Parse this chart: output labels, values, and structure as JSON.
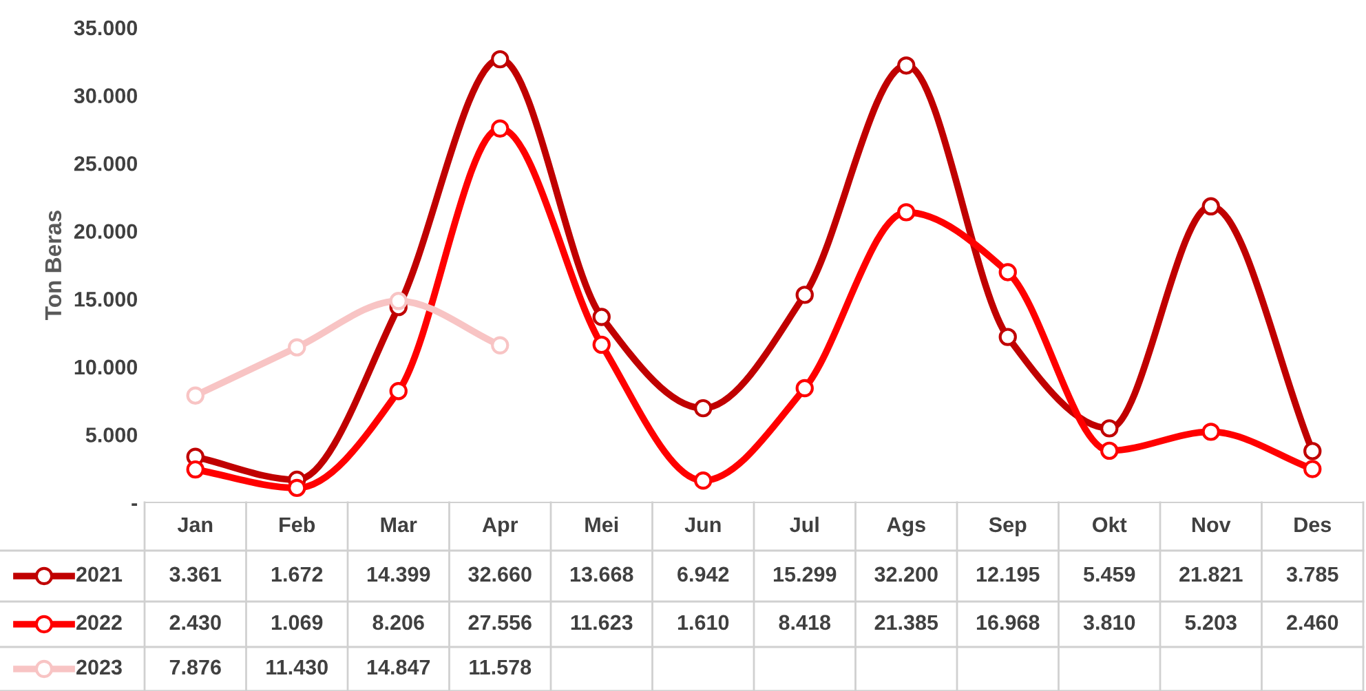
{
  "chart_data": {
    "type": "line",
    "ylabel": "Ton Beras",
    "categories": [
      "Jan",
      "Feb",
      "Mar",
      "Apr",
      "Mei",
      "Jun",
      "Jul",
      "Ags",
      "Sep",
      "Okt",
      "Nov",
      "Des"
    ],
    "series": [
      {
        "name": "2021",
        "color": "#c00000",
        "values": [
          3361,
          1672,
          14399,
          32660,
          13668,
          6942,
          15299,
          32200,
          12195,
          5459,
          21821,
          3785
        ],
        "value_labels": [
          "3.361",
          "1.672",
          "14.399",
          "32.660",
          "13.668",
          "6.942",
          "15.299",
          "32.200",
          "12.195",
          "5.459",
          "21.821",
          "3.785"
        ]
      },
      {
        "name": "2022",
        "color": "#ff0000",
        "values": [
          2430,
          1069,
          8206,
          27556,
          11623,
          1610,
          8418,
          21385,
          16968,
          3810,
          5203,
          2460
        ],
        "value_labels": [
          "2.430",
          "1.069",
          "8.206",
          "27.556",
          "11.623",
          "1.610",
          "8.418",
          "21.385",
          "16.968",
          "3.810",
          "5.203",
          "2.460"
        ]
      },
      {
        "name": "2023",
        "color": "#f8c4c4",
        "values": [
          7876,
          11430,
          14847,
          11578,
          null,
          null,
          null,
          null,
          null,
          null,
          null,
          null
        ],
        "value_labels": [
          "7.876",
          "11.430",
          "14.847",
          "11.578",
          null,
          null,
          null,
          null,
          null,
          null,
          null,
          null
        ]
      }
    ],
    "ylim": [
      0,
      35000
    ],
    "yticks": [
      {
        "value": 0,
        "label": "-"
      },
      {
        "value": 5000,
        "label": "5.000"
      },
      {
        "value": 10000,
        "label": "10.000"
      },
      {
        "value": 15000,
        "label": "15.000"
      },
      {
        "value": 20000,
        "label": "20.000"
      },
      {
        "value": 25000,
        "label": "25.000"
      },
      {
        "value": 30000,
        "label": "30.000"
      },
      {
        "value": 35000,
        "label": "35.000"
      }
    ],
    "grid": false,
    "legend": "bottom",
    "marker": "circle",
    "line_style": "solid"
  }
}
